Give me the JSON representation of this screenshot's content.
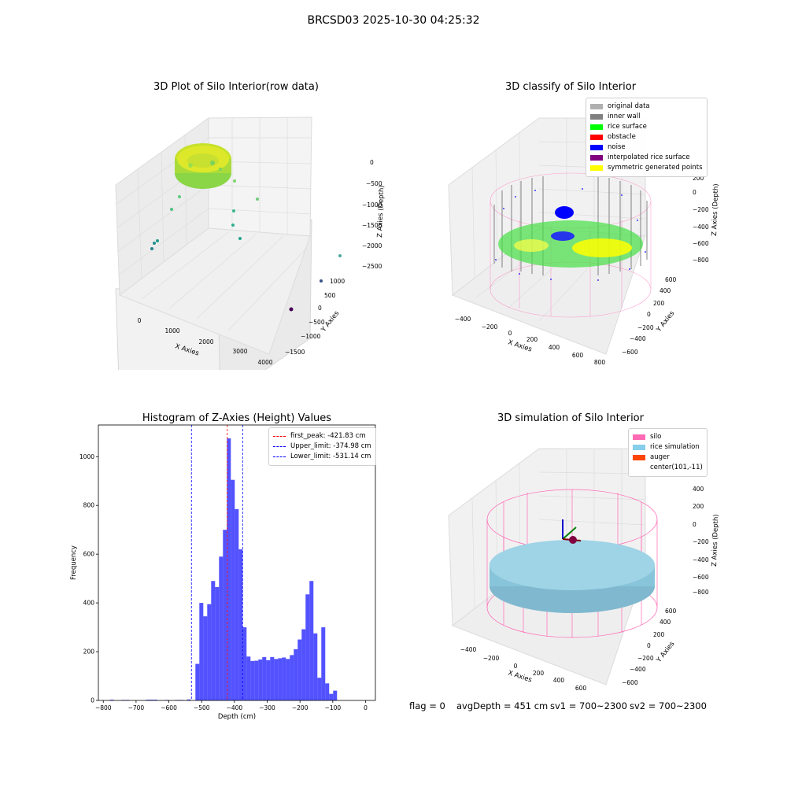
{
  "suptitle": "BRCSD03 2025-10-30 04:25:32",
  "panels": {
    "raw": {
      "title": "3D Plot of Silo Interior(row data)",
      "xlabel": "X Axies",
      "ylabel": "Y Axies",
      "zlabel": "Z Axies (Depth)",
      "xticks": [
        "0",
        "1000",
        "2000",
        "3000",
        "4000"
      ],
      "yticks": [
        "1000",
        "500",
        "0",
        "−500",
        "−1000",
        "−1500"
      ],
      "zticks": [
        "0",
        "−500",
        "−1000",
        "−1500",
        "−2000",
        "−2500"
      ]
    },
    "classify": {
      "title": "3D classify of Silo Interior",
      "xlabel": "X Axies",
      "ylabel": "Y Axies",
      "zlabel": "Z Axies (Depth)",
      "xticks": [
        "−400",
        "−200",
        "0",
        "200",
        "400",
        "600",
        "800"
      ],
      "yticks": [
        "600",
        "400",
        "200",
        "0",
        "−200",
        "−400",
        "−600"
      ],
      "zticks": [
        "200",
        "0",
        "−200",
        "−400",
        "−600",
        "−800"
      ],
      "legend": [
        {
          "label": "original data",
          "color": "#b0b0b0"
        },
        {
          "label": "inner wall",
          "color": "#808080"
        },
        {
          "label": "rice surface",
          "color": "#00ff00"
        },
        {
          "label": "obstacle",
          "color": "#ff0000"
        },
        {
          "label": "noise",
          "color": "#0000ff"
        },
        {
          "label": "interpolated rice surface",
          "color": "#800080"
        },
        {
          "label": "symmetric generated points",
          "color": "#ffff00"
        }
      ]
    },
    "simulation": {
      "title": "3D simulation of Silo Interior",
      "xlabel": "X Axies",
      "ylabel": "Y Axies",
      "zlabel": "Z Axies (Depth)",
      "xticks": [
        "−400",
        "−200",
        "0",
        "200",
        "400",
        "600"
      ],
      "yticks": [
        "600",
        "400",
        "200",
        "0",
        "−200",
        "−400",
        "−600"
      ],
      "zticks": [
        "400",
        "200",
        "0",
        "−200",
        "−400",
        "−600",
        "−800"
      ],
      "legend": [
        {
          "label": "silo",
          "color": "#ff69b4"
        },
        {
          "label": "rice simulation",
          "color": "#87ceeb"
        },
        {
          "label": "auger",
          "color": "#ff4500"
        },
        {
          "label": "center(101,-11)",
          "color": "#ffffff"
        }
      ]
    }
  },
  "status": {
    "flag": "flag = 0",
    "avg": "avgDepth = 451 cm",
    "sv1": "sv1 = 700~2300",
    "sv2": "sv2 = 700~2300"
  },
  "chart_data": {
    "type": "bar",
    "title": "Histogram of Z-Axies (Height) Values",
    "xlabel": "Depth (cm)",
    "ylabel": "Frequency",
    "xlim": [
      -815,
      30
    ],
    "ylim": [
      0,
      1130
    ],
    "xticks": [
      -800,
      -700,
      -600,
      -500,
      -400,
      -300,
      -200,
      -100,
      0
    ],
    "yticks": [
      0,
      200,
      400,
      600,
      800,
      1000
    ],
    "bar_color": "#0000ff",
    "bins": [
      {
        "x0": -780,
        "x1": -768,
        "value": 3
      },
      {
        "x0": -745,
        "x1": -720,
        "value": 2
      },
      {
        "x0": -670,
        "x1": -635,
        "value": 3
      },
      {
        "x0": -612,
        "x1": -600,
        "value": 2
      },
      {
        "x0": -580,
        "x1": -555,
        "value": 2
      },
      {
        "x0": -545,
        "x1": -533,
        "value": 4
      },
      {
        "x0": -519,
        "x1": -507,
        "value": 150
      },
      {
        "x0": -507,
        "x1": -495,
        "value": 400
      },
      {
        "x0": -495,
        "x1": -483,
        "value": 345
      },
      {
        "x0": -483,
        "x1": -471,
        "value": 395
      },
      {
        "x0": -471,
        "x1": -459,
        "value": 490
      },
      {
        "x0": -459,
        "x1": -447,
        "value": 465
      },
      {
        "x0": -447,
        "x1": -435,
        "value": 590
      },
      {
        "x0": -435,
        "x1": -423,
        "value": 700
      },
      {
        "x0": -423,
        "x1": -411,
        "value": 1075
      },
      {
        "x0": -411,
        "x1": -399,
        "value": 905
      },
      {
        "x0": -399,
        "x1": -387,
        "value": 785
      },
      {
        "x0": -387,
        "x1": -375,
        "value": 620
      },
      {
        "x0": -375,
        "x1": -363,
        "value": 300
      },
      {
        "x0": -363,
        "x1": -351,
        "value": 180
      },
      {
        "x0": -351,
        "x1": -339,
        "value": 162
      },
      {
        "x0": -339,
        "x1": -327,
        "value": 163
      },
      {
        "x0": -327,
        "x1": -315,
        "value": 168
      },
      {
        "x0": -315,
        "x1": -303,
        "value": 178
      },
      {
        "x0": -303,
        "x1": -291,
        "value": 165
      },
      {
        "x0": -291,
        "x1": -279,
        "value": 178
      },
      {
        "x0": -279,
        "x1": -267,
        "value": 170
      },
      {
        "x0": -267,
        "x1": -255,
        "value": 173
      },
      {
        "x0": -255,
        "x1": -243,
        "value": 176
      },
      {
        "x0": -243,
        "x1": -231,
        "value": 170
      },
      {
        "x0": -231,
        "x1": -219,
        "value": 186
      },
      {
        "x0": -219,
        "x1": -207,
        "value": 210
      },
      {
        "x0": -207,
        "x1": -195,
        "value": 250
      },
      {
        "x0": -195,
        "x1": -183,
        "value": 292
      },
      {
        "x0": -183,
        "x1": -171,
        "value": 435
      },
      {
        "x0": -171,
        "x1": -159,
        "value": 490
      },
      {
        "x0": -159,
        "x1": -147,
        "value": 275
      },
      {
        "x0": -147,
        "x1": -135,
        "value": 93
      },
      {
        "x0": -135,
        "x1": -123,
        "value": 300
      },
      {
        "x0": -123,
        "x1": -111,
        "value": 70
      },
      {
        "x0": -111,
        "x1": -99,
        "value": 27
      },
      {
        "x0": -99,
        "x1": -87,
        "value": 40
      }
    ],
    "vlines": [
      {
        "label": "first_peak: -421.83 cm",
        "x": -421.83,
        "color": "#ff0000"
      },
      {
        "label": "Upper_limit: -374.98 cm",
        "x": -374.98,
        "color": "#0000ff"
      },
      {
        "label": "Lower_limit: -531.14 cm",
        "x": -531.14,
        "color": "#0000ff"
      }
    ]
  }
}
